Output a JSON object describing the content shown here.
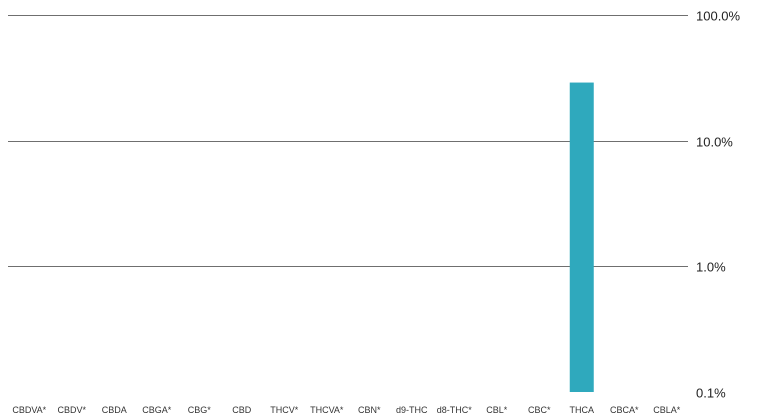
{
  "chart_data": {
    "type": "bar",
    "scale": "log",
    "ylim": [
      0.1,
      100
    ],
    "grid": true,
    "legend": "none",
    "bar_color": "#2fa9bd",
    "yticks": [
      "100.0%",
      "10.0%",
      "1.0%",
      "0.1%"
    ],
    "ytick_values": [
      100,
      10,
      1,
      0.1
    ],
    "categories": [
      "CBDVA*",
      "CBDV*",
      "CBDA",
      "CBGA*",
      "CBG*",
      "CBD",
      "THCV*",
      "THCVA*",
      "CBN*",
      "d9-THC",
      "d8-THC*",
      "CBL*",
      "CBC*",
      "THCA",
      "CBCA*",
      "CBLA*"
    ],
    "values": [
      null,
      null,
      null,
      null,
      null,
      null,
      null,
      null,
      null,
      null,
      null,
      null,
      null,
      29,
      null,
      null
    ],
    "title": "",
    "xlabel": "",
    "ylabel": ""
  }
}
